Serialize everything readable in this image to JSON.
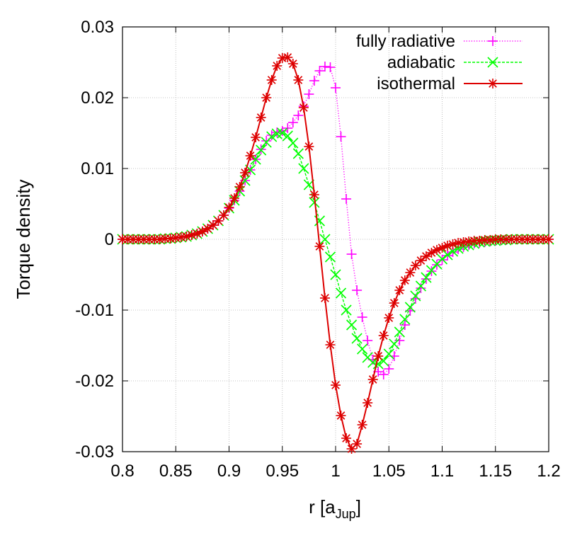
{
  "chart_data": {
    "type": "line",
    "xlabel": "r [a",
    "xlabel_sub": "Jup",
    "xlabel_close": "]",
    "ylabel": "Torque density",
    "xlim": [
      0.8,
      1.2
    ],
    "ylim": [
      -0.03,
      0.03
    ],
    "x_ticks": [
      0.8,
      0.85,
      0.9,
      0.95,
      1.0,
      1.05,
      1.1,
      1.15,
      1.2
    ],
    "x_tick_labels": [
      "0.8",
      "0.85",
      "0.9",
      "0.95",
      "1",
      "1.05",
      "1.1",
      "1.15",
      "1.2"
    ],
    "y_ticks": [
      -0.03,
      -0.02,
      -0.01,
      0,
      0.01,
      0.02,
      0.03
    ],
    "y_tick_labels": [
      "-0.03",
      "-0.02",
      "-0.01",
      "0",
      "0.01",
      "0.02",
      "0.03"
    ],
    "grid": true,
    "legend_position": "top-right",
    "series": [
      {
        "name": "fully radiative",
        "color": "#ff00ff",
        "marker": "plus",
        "line_style": "dotted",
        "x": [
          0.8,
          0.805,
          0.81,
          0.815,
          0.82,
          0.825,
          0.83,
          0.835,
          0.84,
          0.845,
          0.85,
          0.855,
          0.86,
          0.865,
          0.87,
          0.875,
          0.88,
          0.885,
          0.89,
          0.895,
          0.9,
          0.905,
          0.91,
          0.915,
          0.92,
          0.925,
          0.93,
          0.935,
          0.94,
          0.945,
          0.95,
          0.955,
          0.96,
          0.965,
          0.97,
          0.975,
          0.98,
          0.985,
          0.99,
          0.995,
          1.0,
          1.005,
          1.01,
          1.015,
          1.02,
          1.025,
          1.03,
          1.035,
          1.04,
          1.045,
          1.05,
          1.055,
          1.06,
          1.065,
          1.07,
          1.075,
          1.08,
          1.085,
          1.09,
          1.095,
          1.1,
          1.105,
          1.11,
          1.115,
          1.12,
          1.125,
          1.13,
          1.135,
          1.14,
          1.145,
          1.15,
          1.155,
          1.16,
          1.165,
          1.17,
          1.175,
          1.18,
          1.185,
          1.19,
          1.195,
          1.2
        ],
        "y": [
          0,
          0,
          0,
          0,
          0,
          0,
          0,
          0,
          0.0001,
          0.0001,
          0.0002,
          0.0003,
          0.0004,
          0.0006,
          0.0008,
          0.0011,
          0.0015,
          0.002,
          0.0026,
          0.0034,
          0.0044,
          0.0055,
          0.0068,
          0.0083,
          0.0098,
          0.0113,
          0.0127,
          0.0139,
          0.0147,
          0.0151,
          0.0153,
          0.0157,
          0.0165,
          0.0175,
          0.0188,
          0.0205,
          0.0224,
          0.0238,
          0.0244,
          0.0243,
          0.0214,
          0.0145,
          0.0057,
          -0.0021,
          -0.0072,
          -0.011,
          -0.0143,
          -0.017,
          -0.0187,
          -0.0191,
          -0.0183,
          -0.0165,
          -0.0143,
          -0.0121,
          -0.0101,
          -0.0084,
          -0.0069,
          -0.0056,
          -0.0045,
          -0.0036,
          -0.0029,
          -0.0023,
          -0.0018,
          -0.0014,
          -0.0011,
          -0.0008,
          -0.0006,
          -0.0005,
          -0.0004,
          -0.0003,
          -0.0002,
          -0.0001,
          -0.0001,
          0,
          0,
          0,
          0,
          0,
          0,
          0,
          0
        ]
      },
      {
        "name": "adiabatic",
        "color": "#00ff00",
        "marker": "cross",
        "line_style": "dashed",
        "x": [
          0.8,
          0.805,
          0.81,
          0.815,
          0.82,
          0.825,
          0.83,
          0.835,
          0.84,
          0.845,
          0.85,
          0.855,
          0.86,
          0.865,
          0.87,
          0.875,
          0.88,
          0.885,
          0.89,
          0.895,
          0.9,
          0.905,
          0.91,
          0.915,
          0.92,
          0.925,
          0.93,
          0.935,
          0.94,
          0.945,
          0.95,
          0.955,
          0.96,
          0.965,
          0.97,
          0.975,
          0.98,
          0.985,
          0.99,
          0.995,
          1.0,
          1.005,
          1.01,
          1.015,
          1.02,
          1.025,
          1.03,
          1.035,
          1.04,
          1.045,
          1.05,
          1.055,
          1.06,
          1.065,
          1.07,
          1.075,
          1.08,
          1.085,
          1.09,
          1.095,
          1.1,
          1.105,
          1.11,
          1.115,
          1.12,
          1.125,
          1.13,
          1.135,
          1.14,
          1.145,
          1.15,
          1.155,
          1.16,
          1.165,
          1.17,
          1.175,
          1.18,
          1.185,
          1.19,
          1.195,
          1.2
        ],
        "y": [
          0,
          0,
          0,
          0,
          0,
          0,
          0,
          0,
          0.0001,
          0.0001,
          0.0002,
          0.0003,
          0.0004,
          0.0006,
          0.0008,
          0.0011,
          0.0015,
          0.002,
          0.0026,
          0.0034,
          0.0044,
          0.0055,
          0.0068,
          0.0083,
          0.0098,
          0.0113,
          0.0126,
          0.0137,
          0.0145,
          0.0149,
          0.015,
          0.0146,
          0.0136,
          0.0121,
          0.01,
          0.0077,
          0.0052,
          0.0026,
          0.0,
          -0.0025,
          -0.005,
          -0.0076,
          -0.01,
          -0.0121,
          -0.014,
          -0.0155,
          -0.0167,
          -0.0174,
          -0.0176,
          -0.0172,
          -0.0162,
          -0.0148,
          -0.0131,
          -0.0113,
          -0.0096,
          -0.008,
          -0.0066,
          -0.0054,
          -0.0044,
          -0.0035,
          -0.0028,
          -0.0022,
          -0.0017,
          -0.0013,
          -0.001,
          -0.0008,
          -0.0006,
          -0.0004,
          -0.0003,
          -0.0002,
          -0.0002,
          -0.0001,
          -0.0001,
          0,
          0,
          0,
          0,
          0,
          0,
          0,
          0
        ]
      },
      {
        "name": "isothermal",
        "color": "#dd0000",
        "marker": "star",
        "line_style": "solid",
        "x": [
          0.8,
          0.805,
          0.81,
          0.815,
          0.82,
          0.825,
          0.83,
          0.835,
          0.84,
          0.845,
          0.85,
          0.855,
          0.86,
          0.865,
          0.87,
          0.875,
          0.88,
          0.885,
          0.89,
          0.895,
          0.9,
          0.905,
          0.91,
          0.915,
          0.92,
          0.925,
          0.93,
          0.935,
          0.94,
          0.945,
          0.95,
          0.955,
          0.96,
          0.965,
          0.97,
          0.975,
          0.98,
          0.985,
          0.99,
          0.995,
          1.0,
          1.005,
          1.01,
          1.015,
          1.02,
          1.025,
          1.03,
          1.035,
          1.04,
          1.045,
          1.05,
          1.055,
          1.06,
          1.065,
          1.07,
          1.075,
          1.08,
          1.085,
          1.09,
          1.095,
          1.1,
          1.105,
          1.11,
          1.115,
          1.12,
          1.125,
          1.13,
          1.135,
          1.14,
          1.145,
          1.15,
          1.155,
          1.16,
          1.165,
          1.17,
          1.175,
          1.18,
          1.185,
          1.19,
          1.195,
          1.2
        ],
        "y": [
          0,
          0,
          0,
          0,
          0,
          0,
          0,
          0,
          0.0001,
          0.0001,
          0.0002,
          0.0003,
          0.0004,
          0.0006,
          0.0008,
          0.0011,
          0.0015,
          0.002,
          0.0026,
          0.0034,
          0.0045,
          0.0058,
          0.0074,
          0.0094,
          0.0118,
          0.0144,
          0.0172,
          0.02,
          0.0225,
          0.0245,
          0.0256,
          0.0257,
          0.0248,
          0.0225,
          0.0186,
          0.0131,
          0.0063,
          -0.001,
          -0.0083,
          -0.0149,
          -0.0206,
          -0.0249,
          -0.0281,
          -0.0296,
          -0.0289,
          -0.0262,
          -0.0231,
          -0.0198,
          -0.0165,
          -0.0136,
          -0.0111,
          -0.009,
          -0.0072,
          -0.0058,
          -0.0047,
          -0.0037,
          -0.003,
          -0.0024,
          -0.0019,
          -0.0015,
          -0.0012,
          -0.0009,
          -0.0007,
          -0.0005,
          -0.0004,
          -0.0003,
          -0.0002,
          -0.0002,
          -0.0001,
          -0.0001,
          0,
          0,
          0,
          0,
          0,
          0,
          0,
          0,
          0,
          0,
          0
        ]
      }
    ]
  }
}
